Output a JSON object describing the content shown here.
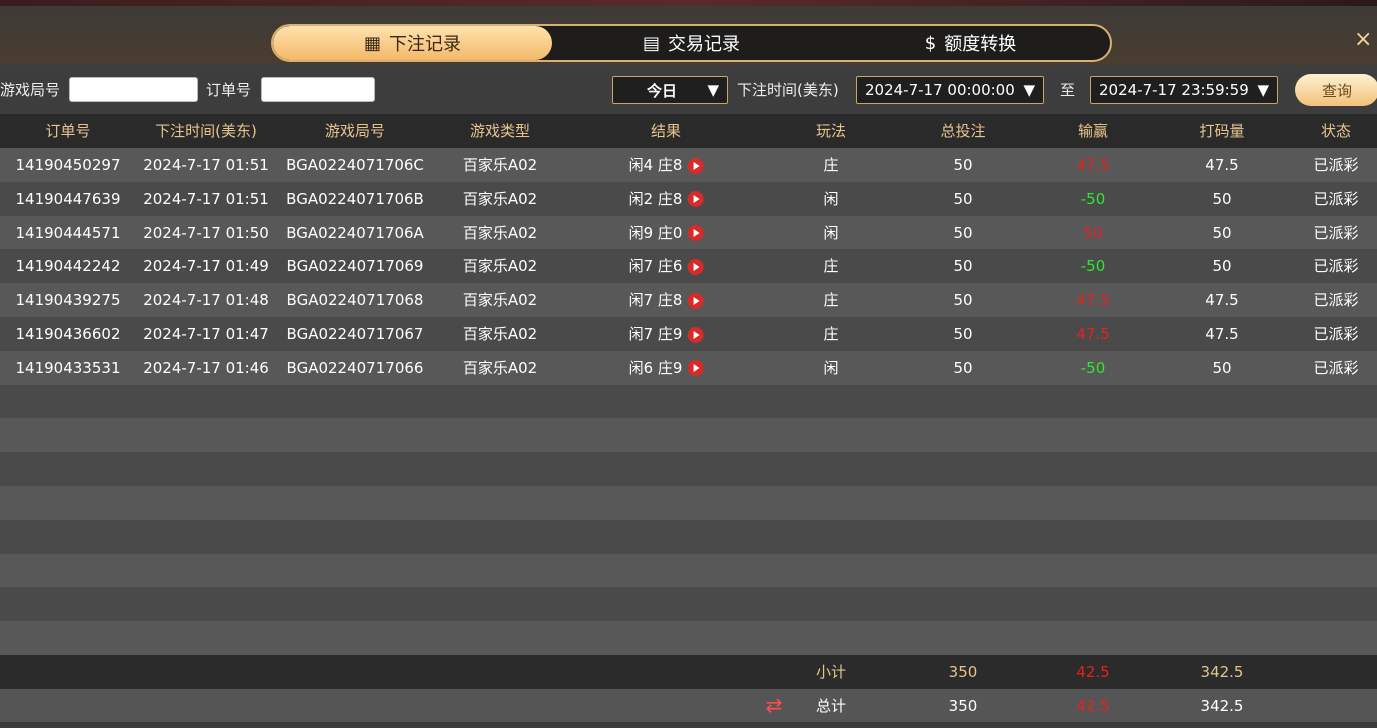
{
  "tabs": [
    {
      "label": "下注记录",
      "icon": "calendar-icon",
      "active": true
    },
    {
      "label": "交易记录",
      "icon": "clipboard-icon"
    },
    {
      "label": "额度转换",
      "icon": "coins-icon"
    }
  ],
  "close": "×",
  "filter": {
    "game_round_label": "游戏局号",
    "game_round_value": "",
    "order_label": "订单号",
    "order_value": "",
    "period": "今日",
    "time_label": "下注时间(美东)",
    "start": "2024-7-17 00:00:00",
    "to": "至",
    "end": "2024-7-17 23:59:59",
    "query": "查询"
  },
  "columns": [
    "订单号",
    "下注时间(美东)",
    "游戏局号",
    "游戏类型",
    "结果",
    "玩法",
    "总投注",
    "输赢",
    "打码量",
    "状态"
  ],
  "rows": [
    [
      "14190450297",
      "2024-7-17 01:51",
      "BGA0224071706C",
      "百家乐A02",
      "闲4 庄8",
      "庄",
      "50",
      "47.5",
      "47.5",
      "已派彩"
    ],
    [
      "14190447639",
      "2024-7-17 01:51",
      "BGA0224071706B",
      "百家乐A02",
      "闲2 庄8",
      "闲",
      "50",
      "-50",
      "50",
      "已派彩"
    ],
    [
      "14190444571",
      "2024-7-17 01:50",
      "BGA0224071706A",
      "百家乐A02",
      "闲9 庄0",
      "闲",
      "50",
      "50",
      "50",
      "已派彩"
    ],
    [
      "14190442242",
      "2024-7-17 01:49",
      "BGA02240717069",
      "百家乐A02",
      "闲7 庄6",
      "庄",
      "50",
      "-50",
      "50",
      "已派彩"
    ],
    [
      "14190439275",
      "2024-7-17 01:48",
      "BGA02240717068",
      "百家乐A02",
      "闲7 庄8",
      "庄",
      "50",
      "47.5",
      "47.5",
      "已派彩"
    ],
    [
      "14190436602",
      "2024-7-17 01:47",
      "BGA02240717067",
      "百家乐A02",
      "闲7 庄9",
      "庄",
      "50",
      "47.5",
      "47.5",
      "已派彩"
    ],
    [
      "14190433531",
      "2024-7-17 01:46",
      "BGA02240717066",
      "百家乐A02",
      "闲6 庄9",
      "闲",
      "50",
      "-50",
      "50",
      "已派彩"
    ]
  ],
  "subtotal": {
    "label": "小计",
    "bet": "350",
    "winloss": "42.5",
    "turnover": "342.5"
  },
  "total": {
    "label": "总计",
    "bet": "350",
    "winloss": "42.5",
    "turnover": "342.5"
  },
  "colors": {
    "win": "#e52222",
    "loss": "#2ee82e",
    "accent": "#e6c48e"
  }
}
